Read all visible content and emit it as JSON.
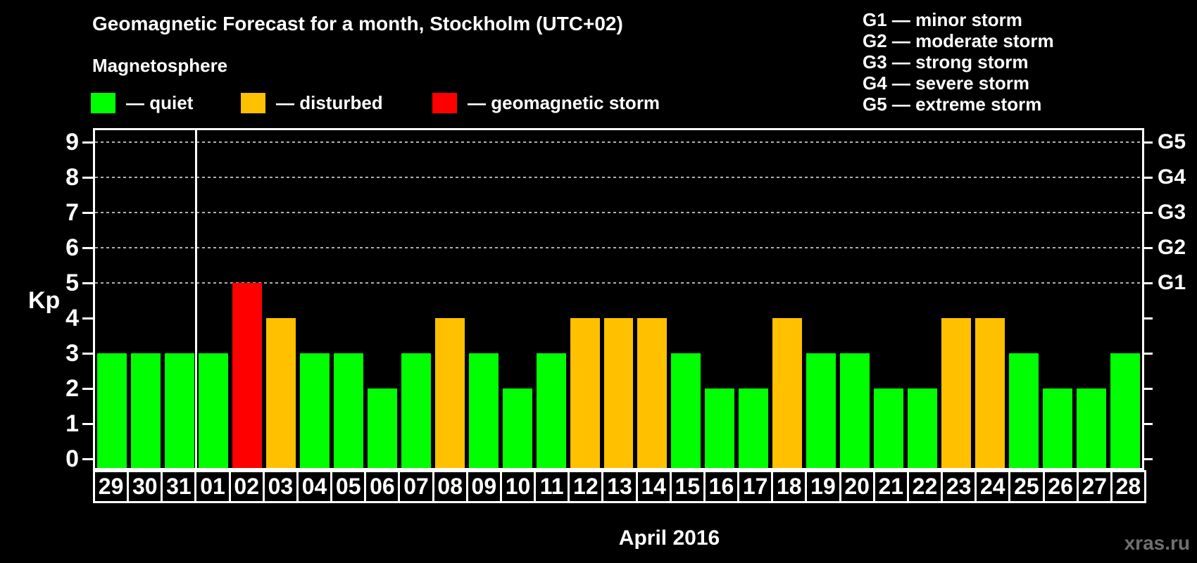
{
  "title": "Geomagnetic Forecast for a month, Stockholm (UTC+02)",
  "subtitle": "Magnetosphere",
  "legend": [
    {
      "name": "quiet",
      "label": "— quiet",
      "color": "#00ff00"
    },
    {
      "name": "disturbed",
      "label": "— disturbed",
      "color": "#ffc000"
    },
    {
      "name": "storm",
      "label": "— geomagnetic storm",
      "color": "#ff0000"
    }
  ],
  "storm_scale": [
    {
      "label": "G1 — minor storm"
    },
    {
      "label": "G2 — moderate storm"
    },
    {
      "label": "G3 — strong storm"
    },
    {
      "label": "G4 — severe storm"
    },
    {
      "label": "G5 — extreme storm"
    }
  ],
  "watermark": "xras.ru",
  "chart_data": {
    "type": "bar",
    "title": "Geomagnetic Forecast for a month, Stockholm (UTC+02)",
    "xlabel": "April 2016",
    "ylabel": "Kp",
    "ylim": [
      0,
      9
    ],
    "yticks": [
      0,
      1,
      2,
      3,
      4,
      5,
      6,
      7,
      8,
      9
    ],
    "grid": "dashed horizontal lines at Kp 5,6,7,8,9",
    "legend_position": "top-left",
    "right_axis": {
      "labels": [
        "G1",
        "G2",
        "G3",
        "G4",
        "G5"
      ],
      "at_kp": [
        5,
        6,
        7,
        8,
        9
      ]
    },
    "categories": [
      "29",
      "30",
      "31",
      "01",
      "02",
      "03",
      "04",
      "05",
      "06",
      "07",
      "08",
      "09",
      "10",
      "11",
      "12",
      "13",
      "14",
      "15",
      "16",
      "17",
      "18",
      "19",
      "20",
      "21",
      "22",
      "23",
      "24",
      "25",
      "26",
      "27",
      "28"
    ],
    "values": [
      3,
      3,
      3,
      3,
      5,
      4,
      3,
      3,
      2,
      3,
      4,
      3,
      2,
      3,
      4,
      4,
      4,
      3,
      2,
      2,
      4,
      3,
      3,
      2,
      2,
      4,
      4,
      3,
      2,
      2,
      3
    ],
    "statuses": [
      "quiet",
      "quiet",
      "quiet",
      "quiet",
      "storm",
      "disturbed",
      "quiet",
      "quiet",
      "quiet",
      "quiet",
      "disturbed",
      "quiet",
      "quiet",
      "quiet",
      "disturbed",
      "disturbed",
      "disturbed",
      "quiet",
      "quiet",
      "quiet",
      "disturbed",
      "quiet",
      "quiet",
      "quiet",
      "quiet",
      "disturbed",
      "disturbed",
      "quiet",
      "quiet",
      "quiet",
      "quiet"
    ],
    "status_colors": {
      "quiet": "#00ff00",
      "disturbed": "#ffc000",
      "storm": "#ff0000"
    },
    "month_separator_after_index": 2
  }
}
